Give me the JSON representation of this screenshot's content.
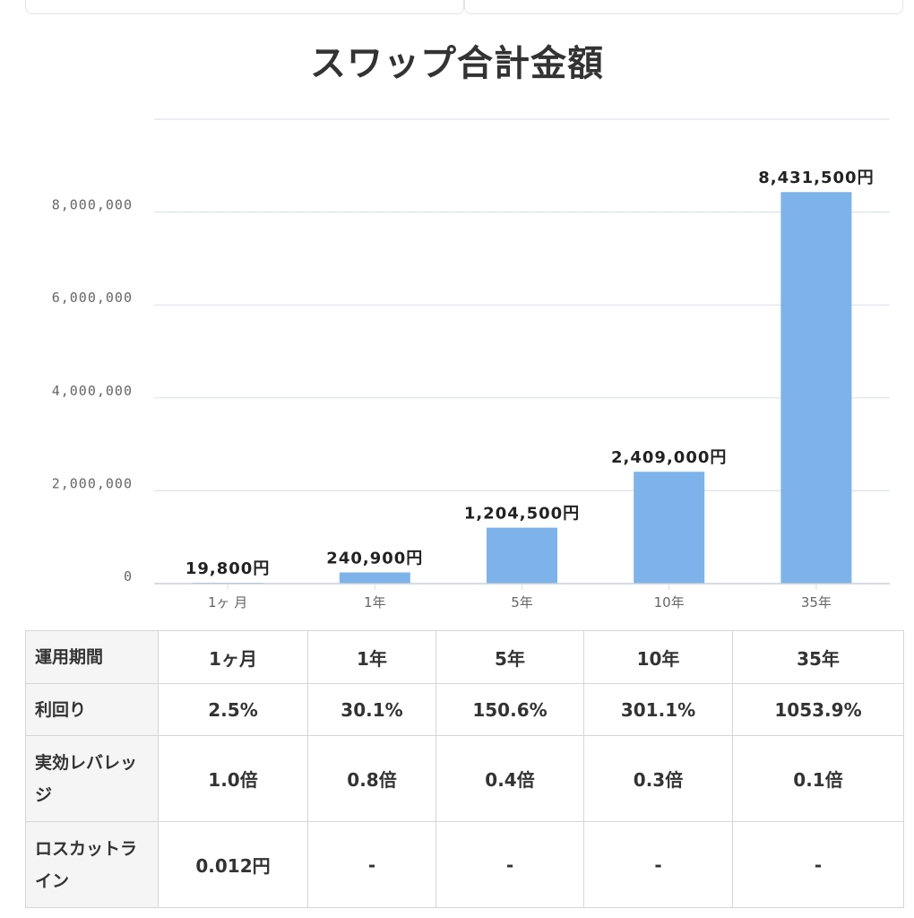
{
  "chart_data": {
    "type": "bar",
    "title": "スワップ合計金額",
    "categories": [
      "1ヶ 月",
      "1年",
      "5年",
      "10年",
      "35年"
    ],
    "values": [
      19800,
      240900,
      1204500,
      2409000,
      8431500
    ],
    "data_labels": [
      "19,800円",
      "240,900円",
      "1,204,500円",
      "2,409,000円",
      "8,431,500円"
    ],
    "yticks": [
      {
        "value": 0,
        "label": "0"
      },
      {
        "value": 2000000,
        "label": "2,000,000"
      },
      {
        "value": 4000000,
        "label": "4,000,000"
      },
      {
        "value": 6000000,
        "label": "6,000,000"
      },
      {
        "value": 8000000,
        "label": "8,000,000"
      },
      {
        "value": 10000000,
        "label": ""
      }
    ],
    "ylim": [
      0,
      10000000
    ],
    "grid": true,
    "bar_color": "#7db3ea",
    "grid_color": "#dde3e8"
  },
  "table": {
    "header": [
      "運用期間",
      "1ヶ月",
      "1年",
      "5年",
      "10年",
      "35年"
    ],
    "rows": [
      [
        "利回り",
        "2.5%",
        "30.1%",
        "150.6%",
        "301.1%",
        "1053.9%"
      ],
      [
        "実効レバレッジ",
        "1.0倍",
        "0.8倍",
        "0.4倍",
        "0.3倍",
        "0.1倍"
      ],
      [
        "ロスカットライン",
        "0.012円",
        "-",
        "-",
        "-",
        "-"
      ]
    ]
  }
}
